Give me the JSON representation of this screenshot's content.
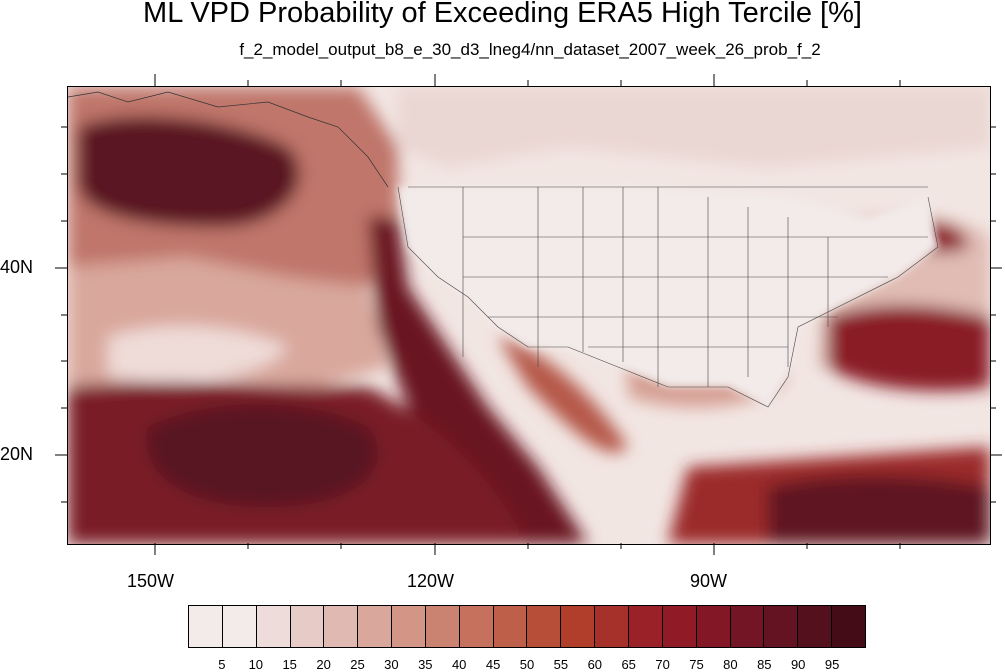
{
  "title": "ML VPD Probability of Exceeding ERA5 High Tercile [%]",
  "subtitle": "f_2_model_output_b8_e_30_d3_lneg4/nn_dataset_2007_week_26_prob_f_2",
  "axes": {
    "x_labels": [
      "150W",
      "120W",
      "90W"
    ],
    "y_labels": [
      "40N",
      "20N"
    ]
  },
  "colorbar": {
    "labels": [
      "5",
      "10",
      "15",
      "20",
      "25",
      "30",
      "35",
      "40",
      "45",
      "50",
      "55",
      "60",
      "65",
      "70",
      "75",
      "80",
      "85",
      "90",
      "95"
    ],
    "colors": [
      "#f2ebea",
      "#eddcda",
      "#e6cbc6",
      "#e0bab2",
      "#d9a79c",
      "#d39686",
      "#cb8371",
      "#c5715e",
      "#be5f4a",
      "#b74f38",
      "#b03e2a",
      "#a6312a",
      "#9b2128",
      "#911a27",
      "#841726",
      "#741525",
      "#641322",
      "#55101d",
      "#440c17"
    ]
  },
  "chart_data": {
    "type": "heatmap",
    "title": "ML VPD Probability of Exceeding ERA5 High Tercile [%]",
    "subtitle": "f_2_model_output_b8_e_30_d3_lneg4/nn_dataset_2007_week_26_prob_f_2",
    "lon_range": [
      -160,
      -62
    ],
    "lat_range": [
      10,
      59
    ],
    "x_ticks": [
      -150,
      -120,
      -90
    ],
    "y_ticks": [
      40,
      20
    ],
    "levels": [
      5,
      10,
      15,
      20,
      25,
      30,
      35,
      40,
      45,
      50,
      55,
      60,
      65,
      70,
      75,
      80,
      85,
      90,
      95
    ]
  }
}
